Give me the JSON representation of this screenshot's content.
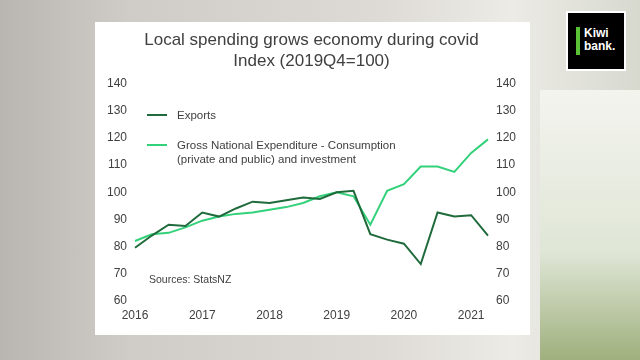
{
  "chart_data": {
    "type": "line",
    "title": "Local spending grows economy during covid",
    "subtitle": "Index (2019Q4=100)",
    "categories": [
      "2016",
      null,
      null,
      null,
      "2017",
      null,
      null,
      null,
      "2018",
      null,
      null,
      null,
      "2019",
      null,
      null,
      null,
      "2020",
      null,
      null,
      null,
      "2021",
      null
    ],
    "series": [
      {
        "name": "Exports",
        "color": "#1f6b3c",
        "values": [
          79.5,
          84,
          88,
          87.5,
          92.5,
          91,
          94,
          96.5,
          96,
          97,
          98,
          97.5,
          100,
          100.5,
          84.5,
          82.5,
          81,
          73.5,
          92.5,
          91,
          91.5,
          84
        ]
      },
      {
        "name": "Gross National Expenditure - Consumption (private and public) and investment",
        "color": "#33d17a",
        "values": [
          82,
          84.5,
          85,
          87,
          89.5,
          91,
          92,
          92.5,
          93.5,
          94.5,
          96,
          98.5,
          100,
          98.5,
          88,
          100.5,
          103,
          109.5,
          109.5,
          107.5,
          114.5,
          119.5
        ]
      }
    ],
    "ylim": [
      60,
      140
    ],
    "yticks": [
      60,
      70,
      80,
      90,
      100,
      110,
      120,
      130,
      140
    ],
    "y2lim": [
      60,
      140
    ],
    "y2ticks": [
      60,
      70,
      80,
      90,
      100,
      110,
      120,
      130,
      140
    ],
    "grid": false,
    "legend": "upper left",
    "annotations": [
      "Sources: StatsNZ"
    ]
  },
  "logo": {
    "lines": [
      "Kiwi",
      "bank."
    ]
  }
}
